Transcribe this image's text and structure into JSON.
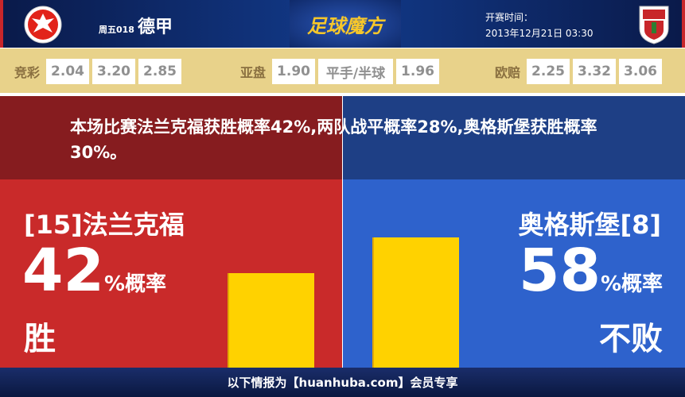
{
  "header": {
    "match_no": "周五018",
    "league": "德甲",
    "brand": "足球魔方",
    "kickoff_label": "开赛时间：",
    "kickoff_time": "2013年12月21日 03:30",
    "home_logo": "eintracht-frankfurt-eagle-logo",
    "away_logo": "fc-augsburg-shield-logo"
  },
  "odds": {
    "jingcai": {
      "label": "竞彩",
      "values": [
        "2.04",
        "3.20",
        "2.85"
      ]
    },
    "yapan": {
      "label": "亚盘",
      "values": [
        "1.90",
        "平手/半球",
        "1.96"
      ]
    },
    "oupei": {
      "label": "欧赔",
      "values": [
        "2.25",
        "3.32",
        "3.06"
      ]
    }
  },
  "summary": "本场比赛法兰克福获胜概率42%,两队战平概率28%,奥格斯堡获胜概率30%。",
  "home": {
    "name": "[15]法兰克福",
    "percent": "42",
    "unit": "%概率",
    "result": "胜",
    "color": "#c92a2a"
  },
  "away": {
    "name": "奥格斯堡[8]",
    "percent": "58",
    "unit": "%概率",
    "result": "不败",
    "color": "#2e62cc"
  },
  "bar_color": "#ffd200",
  "footer": "以下情报为【huanhuba.com】会员专享"
}
